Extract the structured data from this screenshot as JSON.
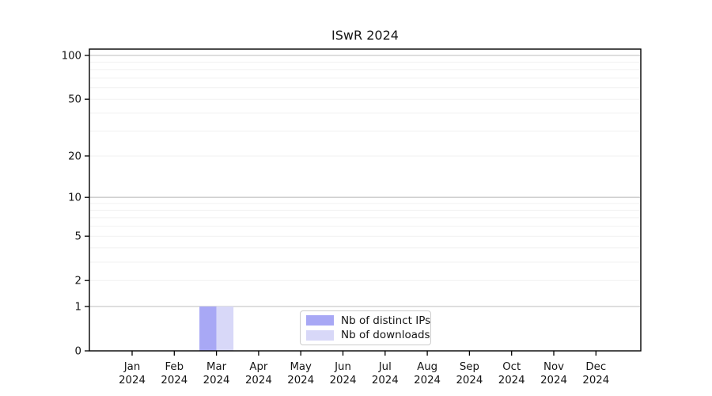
{
  "chart_data": {
    "type": "bar",
    "title": "ISwR 2024",
    "xlabel": "",
    "ylabel": "",
    "categories": [
      "Jan",
      "Feb",
      "Mar",
      "Apr",
      "May",
      "Jun",
      "Jul",
      "Aug",
      "Sep",
      "Oct",
      "Nov",
      "Dec"
    ],
    "category_year": "2024",
    "series": [
      {
        "name": "Nb of distinct IPs",
        "color": "#a8a8f5",
        "values": [
          0,
          0,
          1,
          0,
          0,
          0,
          0,
          0,
          0,
          0,
          0,
          0
        ]
      },
      {
        "name": "Nb of downloads",
        "color": "#d8d8f8",
        "values": [
          0,
          0,
          1,
          0,
          0,
          0,
          0,
          0,
          0,
          0,
          0,
          0
        ]
      }
    ],
    "yscale": "log1p",
    "yticks": [
      0,
      1,
      2,
      5,
      10,
      20,
      50,
      100
    ],
    "ylim": [
      0,
      100
    ],
    "grid": {
      "horizontal": true,
      "minor_log_lines": true,
      "major_color": "#c9c9c9",
      "minor_color": "#f1f1f1"
    },
    "legend": {
      "position": "bottom-center",
      "border_color": "#cccccc"
    }
  }
}
